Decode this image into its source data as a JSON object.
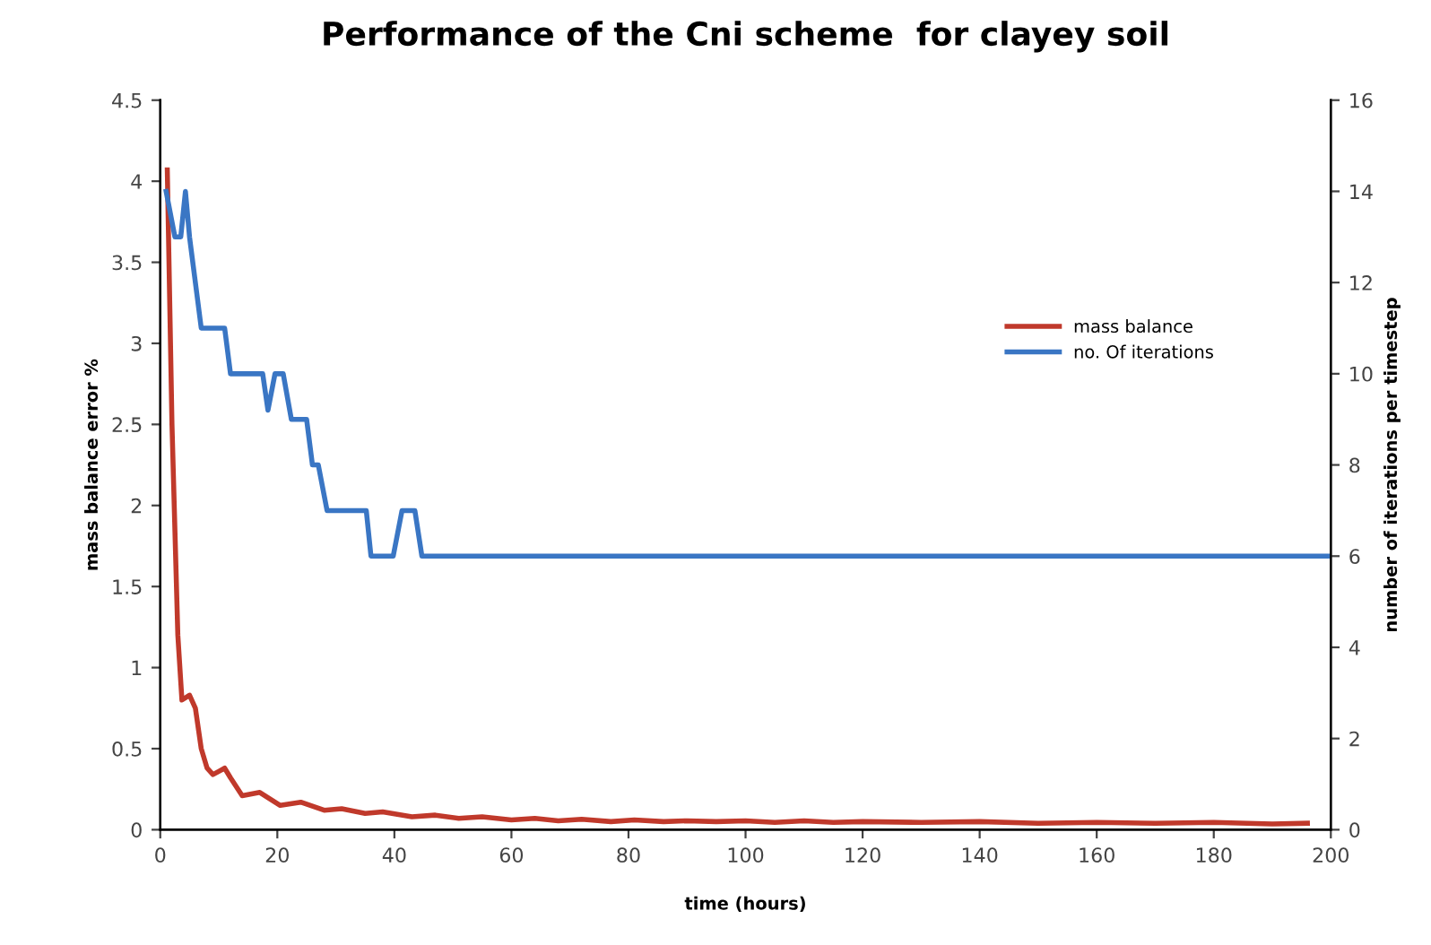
{
  "chart_data": {
    "type": "line",
    "title": "Performance of the Cni scheme  for clayey soil",
    "xlabel": "time (hours)",
    "ylabel": "mass balance error %",
    "y2label": "number of iterations per timestep",
    "xlim": [
      0,
      200
    ],
    "xticks": [
      0,
      20,
      40,
      60,
      80,
      100,
      120,
      140,
      160,
      180,
      200
    ],
    "ylim": [
      0,
      4.5
    ],
    "yticks": [
      0,
      0.5,
      1,
      1.5,
      2,
      2.5,
      3,
      3.5,
      4,
      4.5
    ],
    "y2lim": [
      0,
      16
    ],
    "y2ticks": [
      0,
      2,
      4,
      6,
      8,
      10,
      12,
      14,
      16
    ],
    "legend": "right",
    "grid": false,
    "series": [
      {
        "name": "mass balance",
        "color": "#c0392b",
        "x": [
          1.2,
          2,
          3,
          3.7,
          5,
          6,
          7,
          8,
          9,
          10,
          11,
          12,
          14,
          17,
          20.5,
          24,
          28,
          31,
          35,
          38,
          43,
          47,
          51,
          55,
          60,
          64,
          68,
          72,
          77,
          81,
          86,
          90,
          95,
          100,
          105,
          110,
          115,
          120,
          130,
          140,
          150,
          160,
          170,
          180,
          190,
          196
        ],
        "values": [
          4.07,
          2.5,
          1.2,
          0.8,
          0.83,
          0.75,
          0.5,
          0.38,
          0.34,
          0.36,
          0.38,
          0.32,
          0.21,
          0.23,
          0.15,
          0.17,
          0.12,
          0.13,
          0.1,
          0.11,
          0.08,
          0.09,
          0.07,
          0.08,
          0.06,
          0.07,
          0.055,
          0.065,
          0.05,
          0.06,
          0.05,
          0.055,
          0.05,
          0.055,
          0.045,
          0.055,
          0.045,
          0.05,
          0.045,
          0.05,
          0.04,
          0.045,
          0.04,
          0.045,
          0.035,
          0.04
        ]
      },
      {
        "name": "no. Of iterations",
        "color": "#3a76c4",
        "axis": "y2",
        "x": [
          1,
          2.5,
          3.5,
          4.3,
          5,
          7,
          11,
          12,
          17.5,
          18.4,
          19.6,
          21,
          22.4,
          25,
          26,
          27,
          28.5,
          35.2,
          36,
          39.8,
          41.3,
          43.5,
          44.7,
          200
        ],
        "values": [
          14,
          13,
          13,
          14,
          13,
          11,
          11,
          10,
          10,
          9.2,
          10,
          10,
          9,
          9,
          8,
          8,
          7,
          7,
          6,
          6,
          7,
          7,
          6,
          6
        ]
      }
    ]
  }
}
